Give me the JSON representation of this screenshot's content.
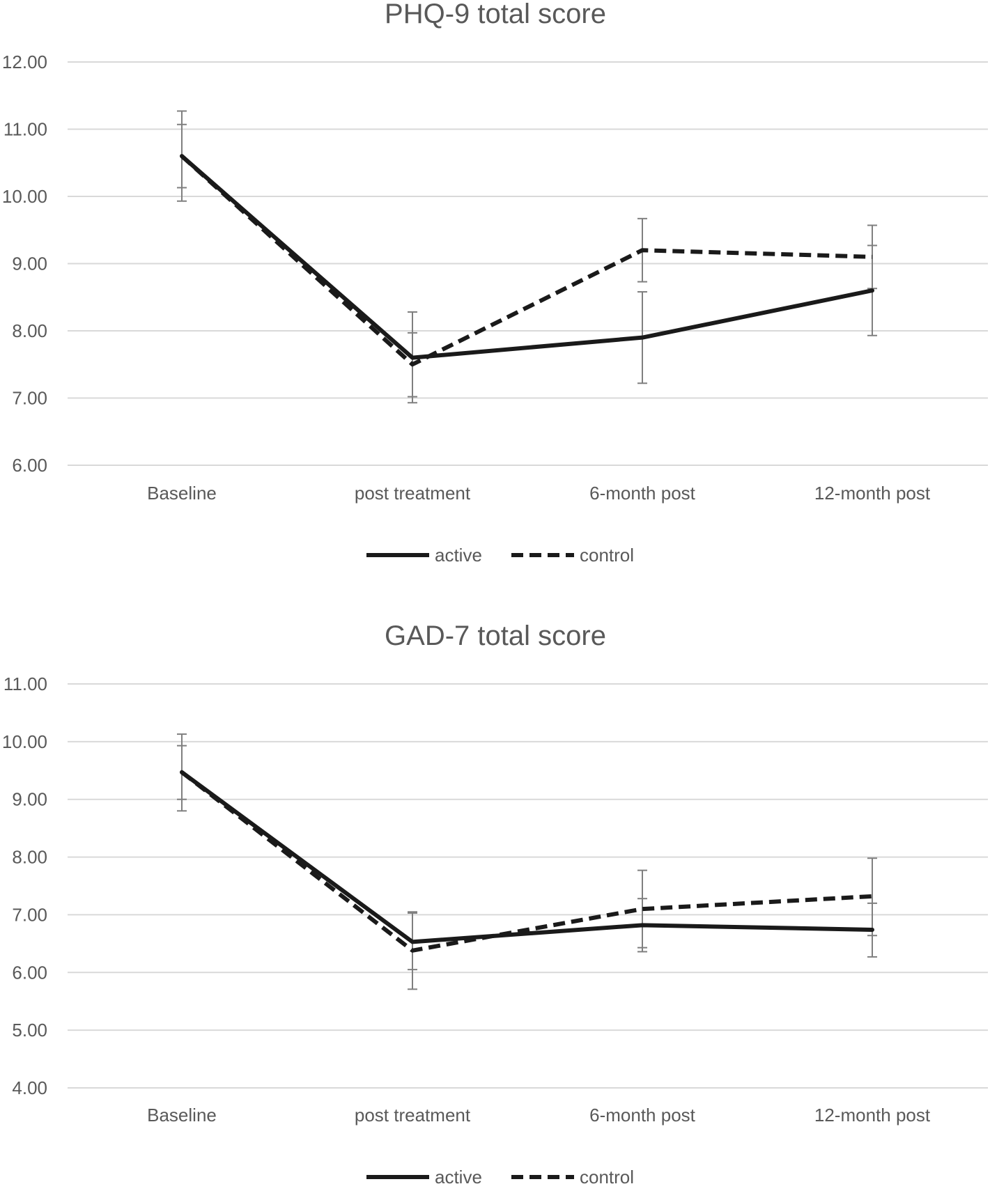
{
  "chart_data": [
    {
      "type": "line",
      "title": "PHQ-9 total score",
      "categories": [
        "Baseline",
        "post  treatment",
        "6-month post",
        "12-month post"
      ],
      "y_ticks": [
        "12.00",
        "11.00",
        "10.00",
        "9.00",
        "8.00",
        "7.00",
        "6.00"
      ],
      "ylim": [
        6,
        12
      ],
      "grid": true,
      "legend_position": "bottom",
      "series": [
        {
          "name": "active",
          "line_style": "solid",
          "values": [
            10.6,
            7.6,
            7.9,
            8.6
          ],
          "error_low": [
            10.13,
            7.02,
            7.22,
            7.93
          ],
          "error_high": [
            11.07,
            8.28,
            8.58,
            9.27
          ]
        },
        {
          "name": "control",
          "line_style": "dashed",
          "values": [
            10.6,
            7.5,
            9.2,
            9.1
          ],
          "error_low": [
            9.93,
            6.93,
            8.73,
            8.63
          ],
          "error_high": [
            11.27,
            7.97,
            9.67,
            9.57
          ]
        }
      ],
      "colors": {
        "line": "#1a1a1a",
        "grid": "#d9d9d9",
        "text": "#595959",
        "error_bar": "#7f7f7f"
      }
    },
    {
      "type": "line",
      "title": "GAD-7 total score",
      "categories": [
        "Baseline",
        "post  treatment",
        "6-month post",
        "12-month post"
      ],
      "y_ticks": [
        "11.00",
        "10.00",
        "9.00",
        "8.00",
        "7.00",
        "6.00",
        "5.00",
        "4.00"
      ],
      "ylim": [
        4,
        11
      ],
      "grid": true,
      "legend_position": "bottom",
      "series": [
        {
          "name": "active",
          "line_style": "solid",
          "values": [
            9.47,
            6.53,
            6.82,
            6.74
          ],
          "error_low": [
            9.0,
            6.05,
            6.36,
            6.27
          ],
          "error_high": [
            9.93,
            7.03,
            7.28,
            7.2
          ]
        },
        {
          "name": "control",
          "line_style": "dashed",
          "values": [
            9.47,
            6.38,
            7.1,
            7.32
          ],
          "error_low": [
            8.8,
            5.71,
            6.43,
            6.64
          ],
          "error_high": [
            10.13,
            7.05,
            7.77,
            7.98
          ]
        }
      ],
      "colors": {
        "line": "#1a1a1a",
        "grid": "#d9d9d9",
        "text": "#595959",
        "error_bar": "#7f7f7f"
      }
    }
  ]
}
